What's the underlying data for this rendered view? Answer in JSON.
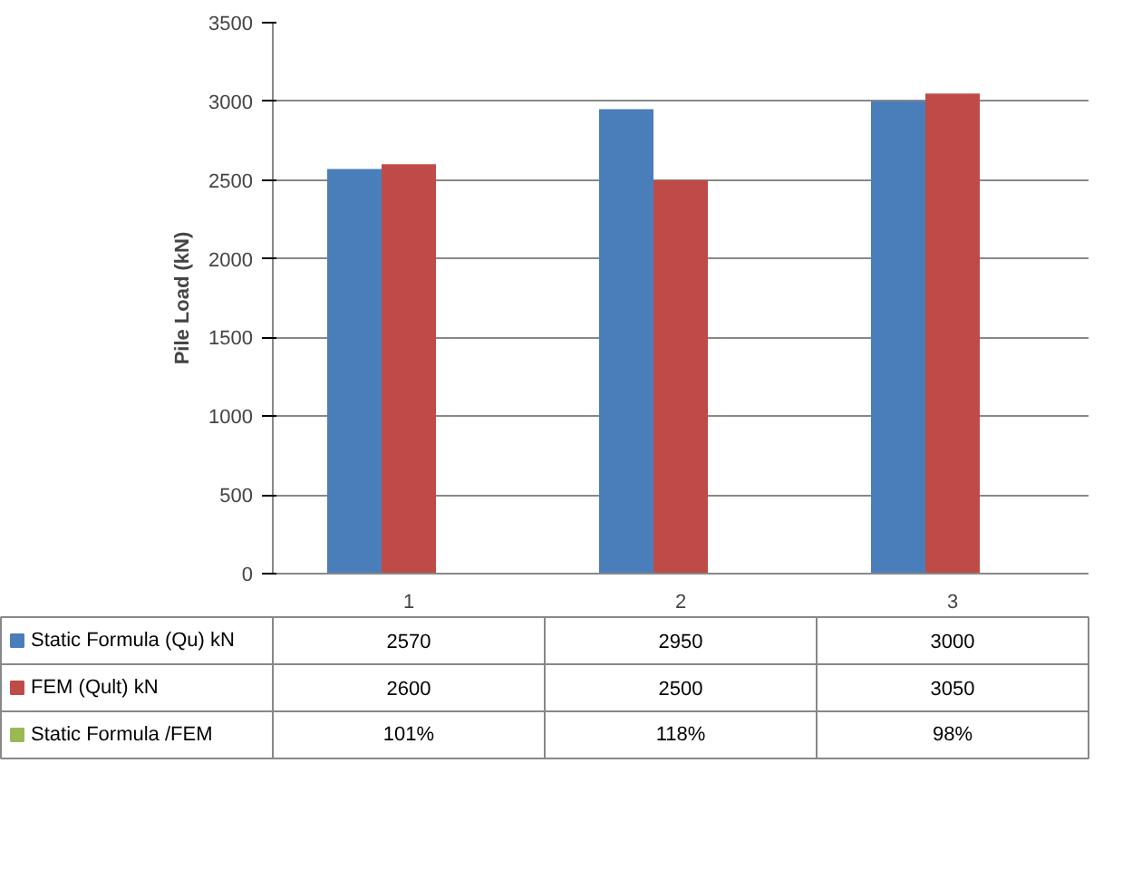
{
  "chart_data": {
    "type": "bar",
    "ylabel": "Pile Load (kN)",
    "categories": [
      "1",
      "2",
      "3"
    ],
    "series": [
      {
        "name": "Static Formula  (Qu) kN",
        "color": "#4a7ebb",
        "values": [
          2570,
          2950,
          3000
        ],
        "value_labels": [
          "2570",
          "2950",
          "3000"
        ]
      },
      {
        "name": "FEM (Qult) kN",
        "color": "#be4b48",
        "values": [
          2600,
          2500,
          3050
        ],
        "value_labels": [
          "2600",
          "2500",
          "3050"
        ]
      },
      {
        "name": "Static Formula /FEM",
        "color": "#98b954",
        "values": [
          1.01,
          1.18,
          0.98
        ],
        "value_labels": [
          "101%",
          "118%",
          "98%"
        ]
      }
    ],
    "ylim": [
      0,
      3500
    ],
    "yticks": [
      0,
      500,
      1000,
      1500,
      2000,
      2500,
      3000,
      3500
    ],
    "grid": "y",
    "legend": "bottom"
  }
}
